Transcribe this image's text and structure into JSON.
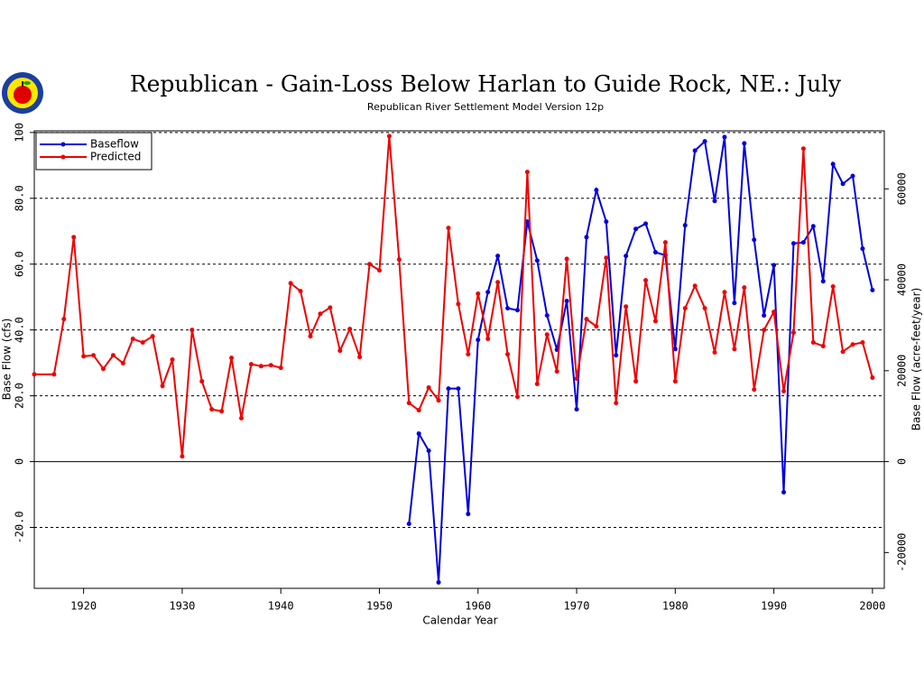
{
  "chart_data": {
    "type": "line",
    "title": "Republican - Gain-Loss Below Harlan to Guide Rock, NE.: July",
    "subtitle": "Republican River Settlement Model Version 12p",
    "xlabel": "Calendar Year",
    "ylabel": "Base Flow (cfs)",
    "y2label": "Base Flow (acre-feet/year)",
    "xlim": [
      1915,
      2001.2
    ],
    "xticks": [
      1920,
      1930,
      1940,
      1950,
      1960,
      1970,
      1980,
      1990,
      2000
    ],
    "ylim": [
      -38.5,
      100.5
    ],
    "yticks": [
      {
        "value": -20,
        "label": "-20.0"
      },
      0,
      {
        "value": 20,
        "label": "20.0"
      },
      {
        "value": 40,
        "label": "40.0"
      },
      {
        "value": 60,
        "label": "60.0"
      },
      {
        "value": 80,
        "label": "80.0"
      },
      100
    ],
    "y2lim": [
      -27874,
      72762
    ],
    "y2ticks": [
      -20000,
      0,
      20000,
      40000,
      60000
    ],
    "grid": true,
    "legend": "upper left",
    "series": [
      {
        "name": "Baseflow",
        "color": "#0000dd",
        "x": [
          1953,
          1954,
          1955,
          1956,
          1957,
          1958,
          1959,
          1960,
          1961,
          1962,
          1963,
          1964,
          1965,
          1966,
          1967,
          1968,
          1969,
          1970,
          1971,
          1972,
          1973,
          1974,
          1975,
          1976,
          1977,
          1978,
          1979,
          1980,
          1981,
          1982,
          1983,
          1984,
          1985,
          1986,
          1987,
          1988,
          1989,
          1990,
          1991,
          1992,
          1993,
          1994,
          1995,
          1996,
          1997,
          1998,
          1999,
          2000
        ],
        "values": [
          -18.9,
          8.5,
          3.3,
          -36.7,
          22.2,
          22.2,
          -15.9,
          37,
          51.5,
          62.5,
          46.6,
          46,
          72.9,
          61.1,
          44.4,
          34,
          48.8,
          15.9,
          68.2,
          82.5,
          72.9,
          32.3,
          62.5,
          70.7,
          72.3,
          63.6,
          62.7,
          34.2,
          71.8,
          94.5,
          97.3,
          79.2,
          98.6,
          48.2,
          96.7,
          67.4,
          44.4,
          59.7,
          -9.3,
          66.3,
          66.6,
          71.5,
          54.8,
          90.4,
          84.4,
          86.8,
          64.7,
          52.1
        ]
      },
      {
        "name": "Predicted",
        "color": "#ee0000",
        "x": [
          1915,
          1917,
          1918,
          1919,
          1920,
          1921,
          1922,
          1923,
          1924,
          1925,
          1926,
          1927,
          1928,
          1929,
          1930,
          1931,
          1932,
          1933,
          1934,
          1935,
          1936,
          1937,
          1938,
          1939,
          1940,
          1941,
          1942,
          1943,
          1944,
          1945,
          1946,
          1947,
          1948,
          1949,
          1950,
          1951,
          1952,
          1953,
          1954,
          1955,
          1956,
          1957,
          1958,
          1959,
          1960,
          1961,
          1962,
          1963,
          1964,
          1965,
          1966,
          1967,
          1968,
          1969,
          1970,
          1971,
          1972,
          1973,
          1974,
          1975,
          1976,
          1977,
          1978,
          1979,
          1980,
          1981,
          1982,
          1983,
          1984,
          1985,
          1986,
          1987,
          1988,
          1989,
          1990,
          1991,
          1992,
          1993,
          1994,
          1995,
          1996,
          1997,
          1998,
          1999,
          2000
        ],
        "values": [
          26.5,
          26.5,
          43.3,
          68.2,
          32,
          32.3,
          28.2,
          32.3,
          29.9,
          37.3,
          36.2,
          38.1,
          23,
          31,
          1.6,
          40,
          24.4,
          15.9,
          15.3,
          31.5,
          13.2,
          29.6,
          29,
          29.3,
          28.5,
          54.2,
          51.8,
          38.1,
          44.9,
          46.8,
          33.7,
          40.3,
          31.8,
          60,
          58.1,
          98.9,
          61.4,
          17.8,
          15.6,
          22.5,
          18.6,
          71,
          47.9,
          32.6,
          51,
          37.3,
          54.5,
          32.6,
          19.7,
          88,
          23.6,
          38.6,
          27.4,
          61.6,
          25.2,
          43.3,
          41.1,
          61.9,
          17.8,
          47.1,
          24.4,
          55.1,
          42.7,
          66.6,
          24.4,
          46.6,
          53.4,
          46.6,
          33.2,
          51.5,
          34.2,
          52.9,
          21.9,
          40,
          45.5,
          21.4,
          39.2,
          95.1,
          36.2,
          35.1,
          53.2,
          33.4,
          35.6,
          36.2,
          25.5
        ]
      }
    ]
  }
}
